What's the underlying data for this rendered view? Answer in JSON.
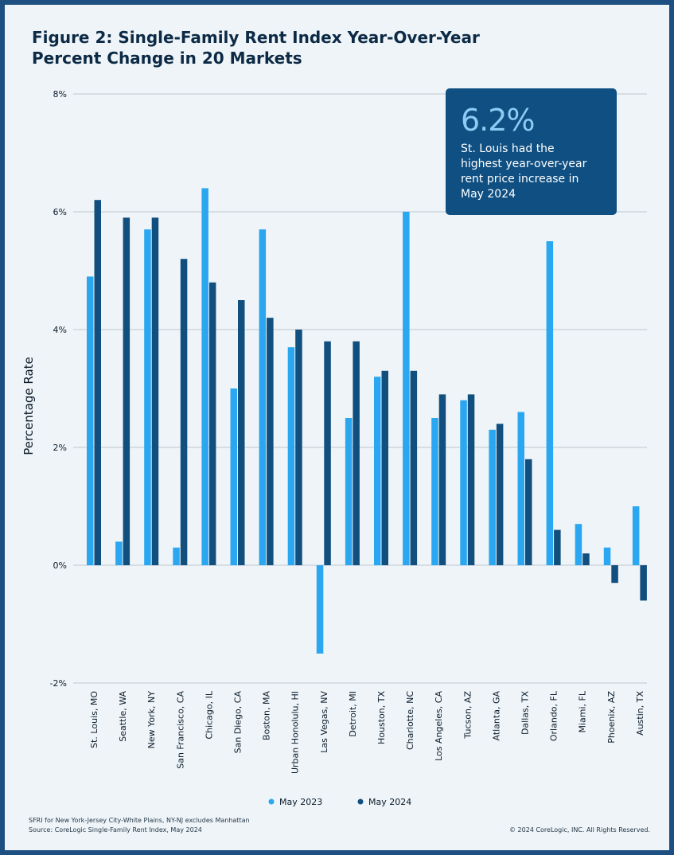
{
  "title_line1": "Figure 2: Single-Family Rent Index Year-Over-Year",
  "title_line2": "Percent Change in 20 Markets",
  "callout": {
    "value": "6.2%",
    "line1": "St. Louis had the",
    "line2": "highest year-over-year",
    "line3": "rent price increase in",
    "line4": "May 2024"
  },
  "footer": {
    "note": "SFRI for New York-Jersey City-White Plains, NY-NJ excludes Manhattan",
    "source": "Source: CoreLogic Single-Family Rent Index, May 2024",
    "copyright": "© 2024 CoreLogic, INC. All Rights Reserved."
  },
  "colors": {
    "may2023": "#2aa7f0",
    "may2024": "#114f7e",
    "grid": "#bfc9d1",
    "background": "#eef4f7",
    "border": "#1d4f80"
  },
  "chart_data": {
    "type": "bar",
    "title": "Figure 2: Single-Family Rent Index Year-Over-Year Percent Change in 20 Markets",
    "xlabel": "",
    "ylabel": "Percentage Rate",
    "ylim": [
      -2,
      8
    ],
    "yticks": [
      -2,
      0,
      2,
      4,
      6,
      8
    ],
    "ytick_labels": [
      "-2%",
      "0%",
      "2%",
      "4%",
      "6%",
      "8%"
    ],
    "grid": true,
    "legend_position": "bottom-center",
    "categories": [
      "St. Louis, MO",
      "Seattle, WA",
      "New York, NY",
      "San Francisco, CA",
      "Chicago, IL",
      "San Diego, CA",
      "Boston, MA",
      "Urban Honolulu, HI",
      "Las Vegas, NV",
      "Detroit, MI",
      "Houston, TX",
      "Charlotte, NC",
      "Los Angeles, CA",
      "Tucson, AZ",
      "Atlanta, GA",
      "Dallas, TX",
      "Orlando, FL",
      "Miami, FL",
      "Phoenix, AZ",
      "Austin, TX"
    ],
    "series": [
      {
        "name": "May 2023",
        "color": "#2aa7f0",
        "values": [
          4.9,
          0.4,
          5.7,
          0.3,
          6.4,
          3.0,
          5.7,
          3.7,
          -1.5,
          2.5,
          3.2,
          6.0,
          2.5,
          2.8,
          2.3,
          2.6,
          5.5,
          0.7,
          0.3,
          1.0
        ]
      },
      {
        "name": "May 2024",
        "color": "#114f7e",
        "values": [
          6.2,
          5.9,
          5.9,
          5.2,
          4.8,
          4.5,
          4.2,
          4.0,
          3.8,
          3.8,
          3.3,
          3.3,
          2.9,
          2.9,
          2.4,
          1.8,
          0.6,
          0.2,
          -0.3,
          -0.6
        ]
      }
    ]
  }
}
